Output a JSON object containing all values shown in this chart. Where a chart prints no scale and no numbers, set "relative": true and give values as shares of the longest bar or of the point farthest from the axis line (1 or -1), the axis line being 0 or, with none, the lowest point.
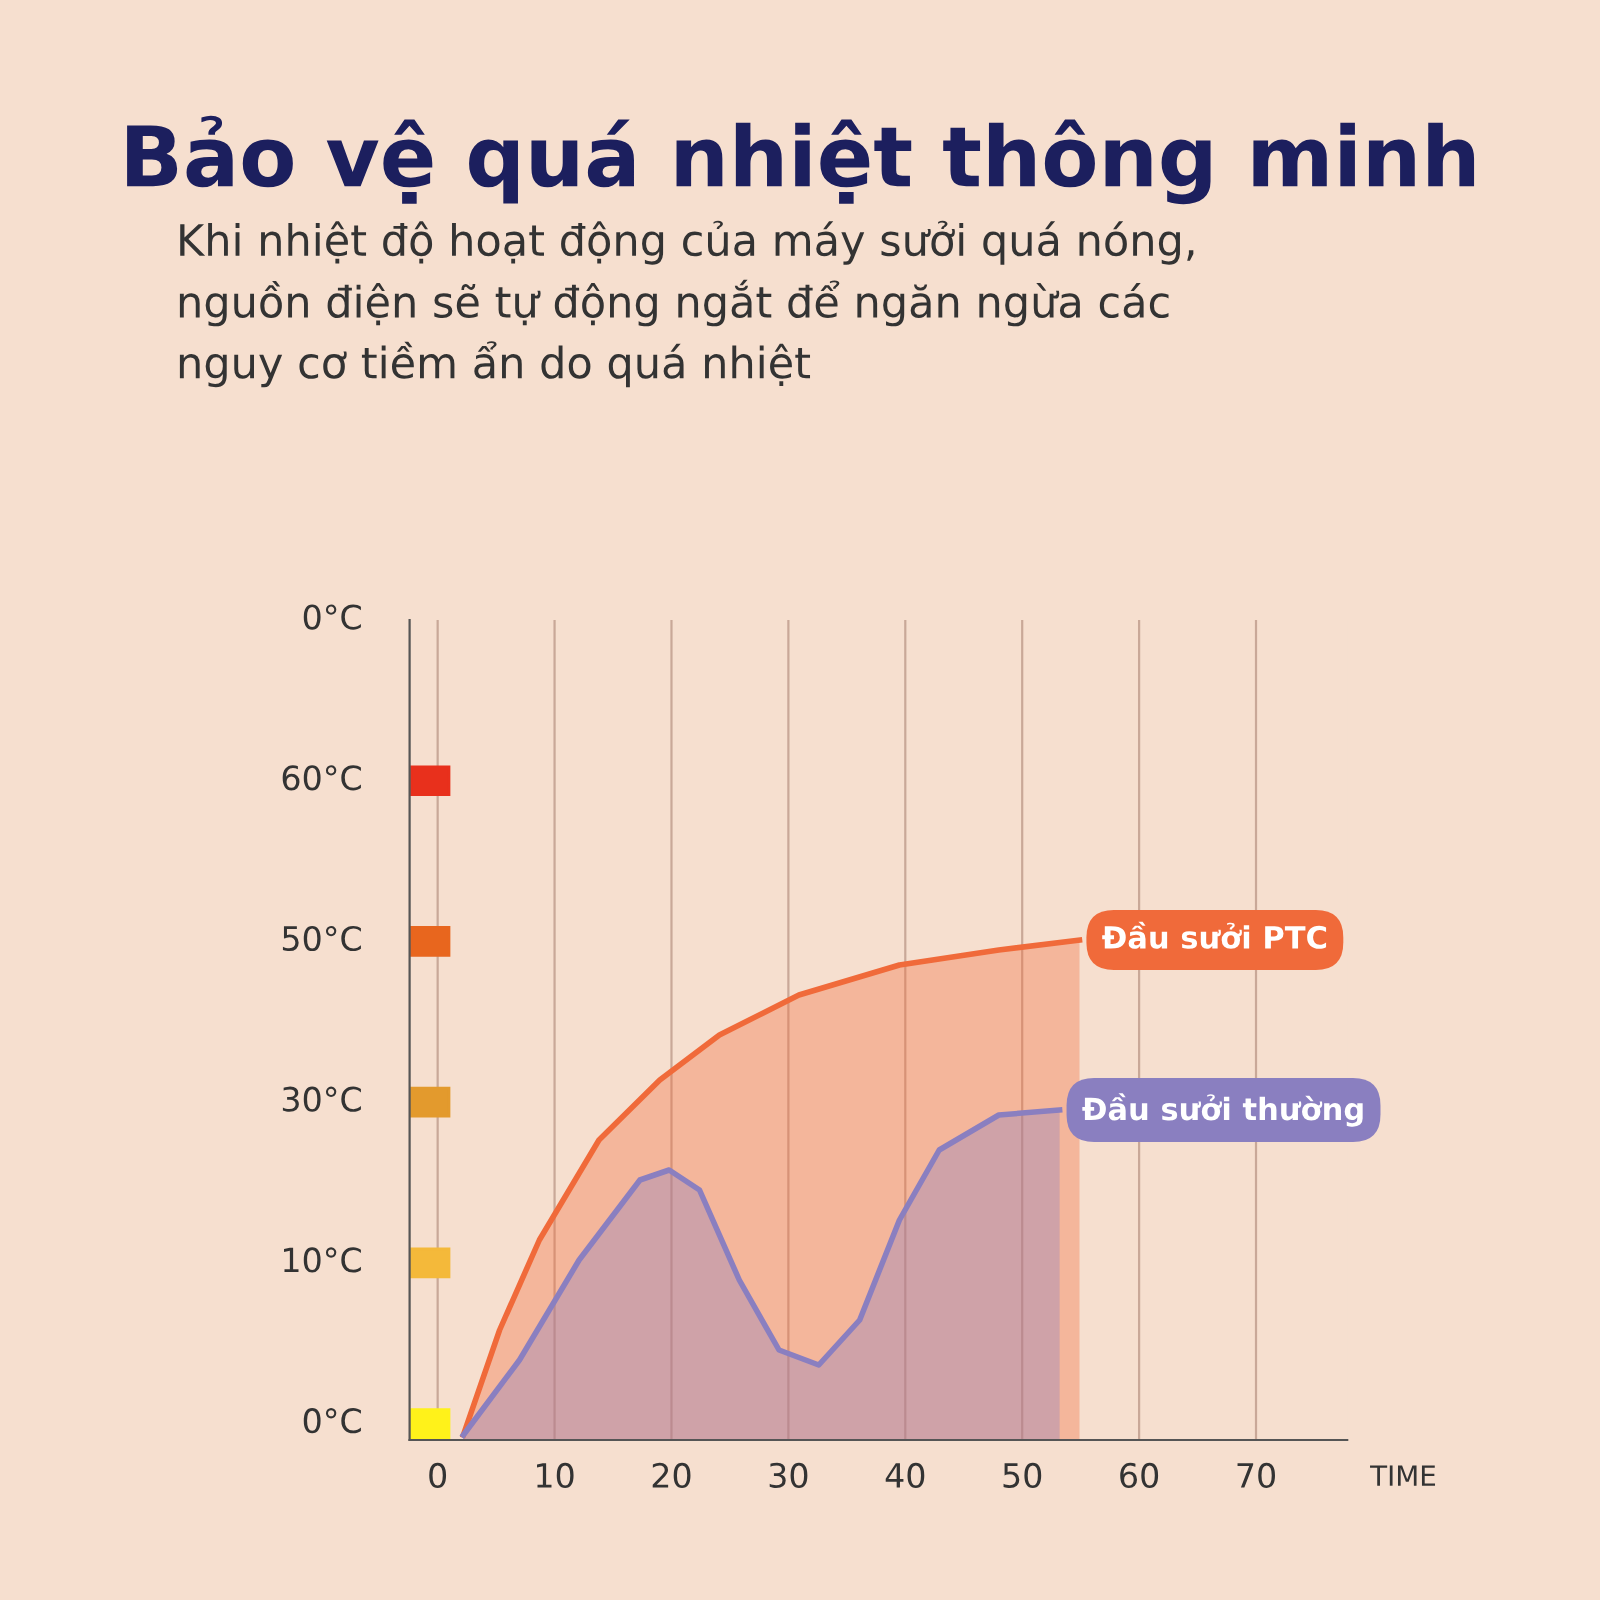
{
  "chart_data": {
    "type": "area",
    "title": "Bảo vệ quá nhiệt thông minh",
    "subtitle": "Khi nhiệt độ hoạt động của máy sưởi quá nóng,\nnguồn điện sẽ tự động ngắt để ngăn ngừa các\nnguy cơ tiềm ẩn do quá nhiệt",
    "xlabel": "TIME",
    "relative": true,
    "xlim": [
      -2.4,
      77.8
    ],
    "xticks": [
      0,
      10,
      20,
      30,
      40,
      50,
      60,
      70
    ],
    "annotations": [
      "0°C",
      "60°C",
      "50°C",
      "30°C",
      "10°C",
      "0°C"
    ],
    "grid": true,
    "legend": false,
    "series": [
      {
        "name": "Đầu sưởi PTC",
        "color": "#f06a3a",
        "x": [
          2.2,
          5.3,
          8.7,
          13.8,
          19.0,
          24.1,
          30.9,
          39.5,
          48.0,
          54.9
        ],
        "values": [
          0.01,
          0.22,
          0.4,
          0.6,
          0.72,
          0.81,
          0.89,
          0.95,
          0.98,
          1.0
        ]
      },
      {
        "name": "Đầu sưởi thường",
        "color": "#8a7fc0",
        "x": [
          2.2,
          7.0,
          12.1,
          17.3,
          19.8,
          22.4,
          25.8,
          29.2,
          32.6,
          36.1,
          39.5,
          42.9,
          48.0,
          53.2
        ],
        "values": [
          0.01,
          0.16,
          0.36,
          0.52,
          0.54,
          0.5,
          0.32,
          0.18,
          0.15,
          0.24,
          0.44,
          0.58,
          0.65,
          0.66
        ]
      }
    ]
  }
}
